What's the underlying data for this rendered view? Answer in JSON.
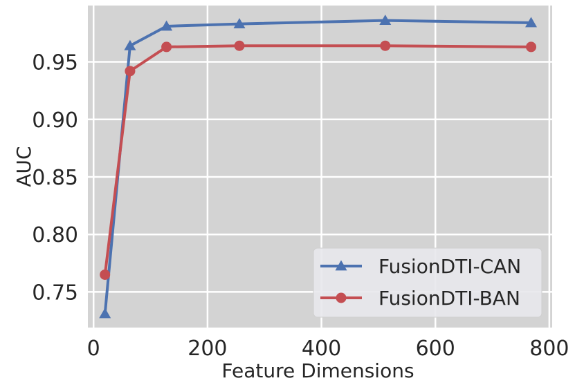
{
  "chart_data": {
    "type": "line",
    "title": "",
    "xlabel": "Feature Dimensions",
    "ylabel": "AUC",
    "xlim": [
      -10,
      805
    ],
    "ylim": [
      0.719,
      0.999
    ],
    "xticks": [
      0,
      200,
      400,
      600,
      800
    ],
    "yticks": [
      0.75,
      0.8,
      0.85,
      0.9,
      0.95
    ],
    "xtick_labels": [
      "0",
      "200",
      "400",
      "600",
      "800"
    ],
    "ytick_labels": [
      "0.75",
      "0.80",
      "0.85",
      "0.90",
      "0.95"
    ],
    "grid": true,
    "legend_position": "lower-right",
    "background": "#d3d3d3",
    "series": [
      {
        "name": "FusionDTI-CAN",
        "color": "#4c72b0",
        "marker": "triangle",
        "x": [
          20,
          64,
          128,
          256,
          512,
          768
        ],
        "y": [
          0.731,
          0.964,
          0.981,
          0.983,
          0.986,
          0.984
        ]
      },
      {
        "name": "FusionDTI-BAN",
        "color": "#c44e52",
        "marker": "circle",
        "x": [
          20,
          64,
          128,
          256,
          512,
          768
        ],
        "y": [
          0.765,
          0.942,
          0.963,
          0.964,
          0.964,
          0.963
        ]
      }
    ]
  }
}
